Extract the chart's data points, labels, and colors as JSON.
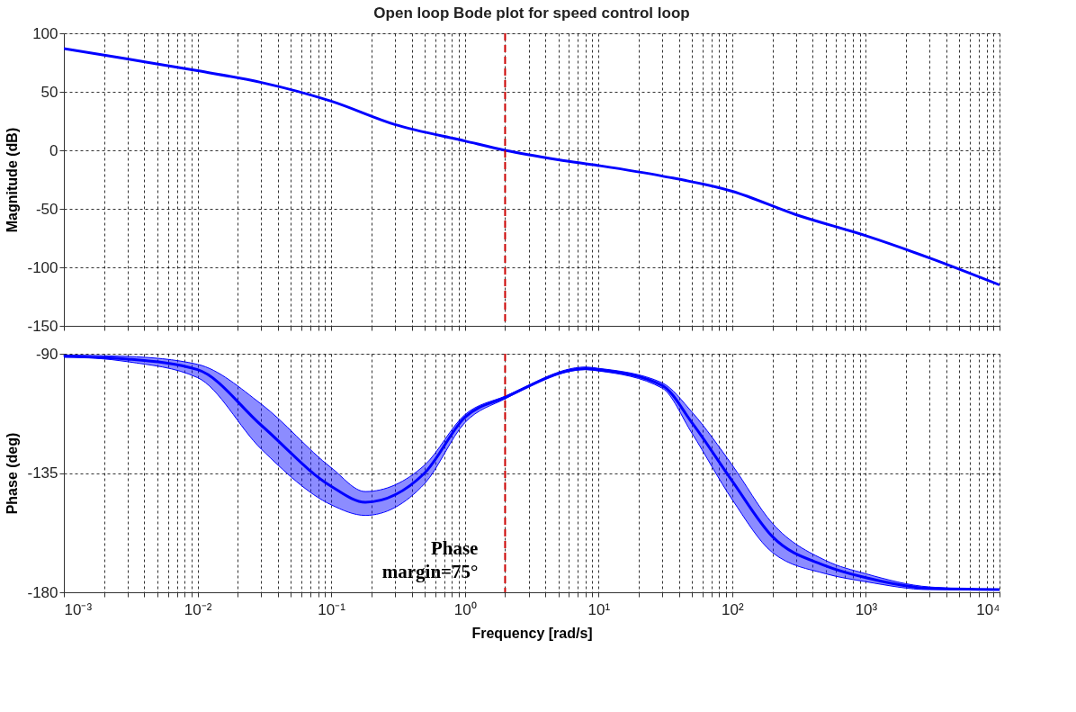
{
  "chart_data": [
    {
      "type": "line",
      "title": "Open loop Bode plot for speed control loop",
      "ylabel": "Magnitude (dB)",
      "log": "x",
      "grid": true,
      "tick_labels": "y",
      "line_style": "solid",
      "xlim": [
        0.001,
        10000
      ],
      "ylim": [
        -150,
        100
      ],
      "yticks": [
        -150,
        -100,
        -50,
        0,
        50,
        100
      ],
      "xticks": [
        0.001,
        0.002,
        0.003,
        0.004,
        0.005,
        0.006,
        0.007,
        0.008,
        0.009,
        0.01,
        0.02,
        0.03,
        0.04,
        0.05,
        0.06,
        0.07,
        0.08,
        0.09,
        0.1,
        0.2,
        0.3,
        0.4,
        0.5,
        0.6,
        0.7,
        0.8,
        0.9,
        1,
        2,
        3,
        4,
        5,
        6,
        7,
        8,
        9,
        10,
        20,
        30,
        40,
        50,
        60,
        70,
        80,
        90,
        100,
        200,
        300,
        400,
        500,
        600,
        700,
        800,
        900,
        1000,
        2000,
        3000,
        4000,
        5000,
        6000,
        7000,
        8000,
        9000,
        10000
      ],
      "series": [
        {
          "color": "#0000ff",
          "x": [
            0.001,
            0.003,
            0.01,
            0.03,
            0.1,
            0.3,
            1,
            2,
            5,
            10,
            30,
            100,
            300,
            1000,
            3000,
            10000
          ],
          "values": [
            87,
            78,
            68,
            58,
            42,
            22,
            8,
            0,
            -8,
            -13,
            -22,
            -35,
            -55,
            -73,
            -92,
            -115
          ]
        }
      ],
      "ref_lines": [
        {
          "axis": "x",
          "value": 2,
          "color": "#cc0000",
          "line_style": "dashed"
        }
      ]
    },
    {
      "type": "line",
      "xlabel": "Frequency  [rad/s]",
      "ylabel": "Phase (deg)",
      "log": "x",
      "grid": true,
      "line_style": "solid",
      "xlim": [
        0.001,
        10000
      ],
      "ylim": [
        -180,
        -90
      ],
      "yticks": [
        -180,
        -135,
        -90
      ],
      "xticks": [
        {
          "value": 0.001,
          "label": "10⁻³"
        },
        {
          "value": 0.002,
          "label": null
        },
        {
          "value": 0.003,
          "label": null
        },
        {
          "value": 0.004,
          "label": null
        },
        {
          "value": 0.005,
          "label": null
        },
        {
          "value": 0.006,
          "label": null
        },
        {
          "value": 0.007,
          "label": null
        },
        {
          "value": 0.008,
          "label": null
        },
        {
          "value": 0.009,
          "label": null
        },
        {
          "value": 0.01,
          "label": "10⁻²"
        },
        {
          "value": 0.02,
          "label": null
        },
        {
          "value": 0.03,
          "label": null
        },
        {
          "value": 0.04,
          "label": null
        },
        {
          "value": 0.05,
          "label": null
        },
        {
          "value": 0.06,
          "label": null
        },
        {
          "value": 0.07,
          "label": null
        },
        {
          "value": 0.08,
          "label": null
        },
        {
          "value": 0.09,
          "label": null
        },
        {
          "value": 0.1,
          "label": "10⁻¹"
        },
        {
          "value": 0.2,
          "label": null
        },
        {
          "value": 0.3,
          "label": null
        },
        {
          "value": 0.4,
          "label": null
        },
        {
          "value": 0.5,
          "label": null
        },
        {
          "value": 0.6,
          "label": null
        },
        {
          "value": 0.7,
          "label": null
        },
        {
          "value": 0.8,
          "label": null
        },
        {
          "value": 0.9,
          "label": null
        },
        {
          "value": 1,
          "label": "10⁰"
        },
        {
          "value": 2,
          "label": null
        },
        {
          "value": 3,
          "label": null
        },
        {
          "value": 4,
          "label": null
        },
        {
          "value": 5,
          "label": null
        },
        {
          "value": 6,
          "label": null
        },
        {
          "value": 7,
          "label": null
        },
        {
          "value": 8,
          "label": null
        },
        {
          "value": 9,
          "label": null
        },
        {
          "value": 10,
          "label": "10¹"
        },
        {
          "value": 20,
          "label": null
        },
        {
          "value": 30,
          "label": null
        },
        {
          "value": 40,
          "label": null
        },
        {
          "value": 50,
          "label": null
        },
        {
          "value": 60,
          "label": null
        },
        {
          "value": 70,
          "label": null
        },
        {
          "value": 80,
          "label": null
        },
        {
          "value": 90,
          "label": null
        },
        {
          "value": 100,
          "label": "10²"
        },
        {
          "value": 200,
          "label": null
        },
        {
          "value": 300,
          "label": null
        },
        {
          "value": 400,
          "label": null
        },
        {
          "value": 500,
          "label": null
        },
        {
          "value": 600,
          "label": null
        },
        {
          "value": 700,
          "label": null
        },
        {
          "value": 800,
          "label": null
        },
        {
          "value": 900,
          "label": null
        },
        {
          "value": 1000,
          "label": "10³"
        },
        {
          "value": 2000,
          "label": null
        },
        {
          "value": 3000,
          "label": null
        },
        {
          "value": 4000,
          "label": null
        },
        {
          "value": 5000,
          "label": null
        },
        {
          "value": 6000,
          "label": null
        },
        {
          "value": 7000,
          "label": null
        },
        {
          "value": 8000,
          "label": null
        },
        {
          "value": 9000,
          "label": null
        },
        {
          "value": 10000,
          "label": "10⁴"
        }
      ],
      "series": [
        {
          "color": "#0000ff",
          "x": [
            0.001,
            0.003,
            0.01,
            0.03,
            0.1,
            0.18,
            0.5,
            1,
            2,
            8,
            10,
            30,
            50,
            100,
            200,
            500,
            1000,
            3000,
            10000
          ],
          "values": [
            -91,
            -92,
            -96,
            -117,
            -140,
            -146,
            -135,
            -114,
            -106.5,
            -95.6,
            -96,
            -102,
            -116,
            -138,
            -159,
            -170,
            -174.5,
            -178.5,
            -179
          ],
          "lower": [
            -91,
            -93,
            -99,
            -126,
            -147,
            -151,
            -139,
            -116,
            -107,
            -96,
            -96.5,
            -103,
            -120,
            -145,
            -165,
            -173,
            -176,
            -179,
            -179
          ],
          "upper": [
            -90.5,
            -91,
            -94,
            -109,
            -133,
            -142,
            -132,
            -113,
            -106,
            -95,
            -95.5,
            -101,
            -112,
            -132,
            -154,
            -168,
            -173,
            -178,
            -179
          ]
        }
      ],
      "ref_lines": [
        {
          "axis": "x",
          "value": 2,
          "color": "#cc0000",
          "line_style": "dashed"
        }
      ],
      "annotations": [
        "Phase margin=75°"
      ]
    }
  ]
}
